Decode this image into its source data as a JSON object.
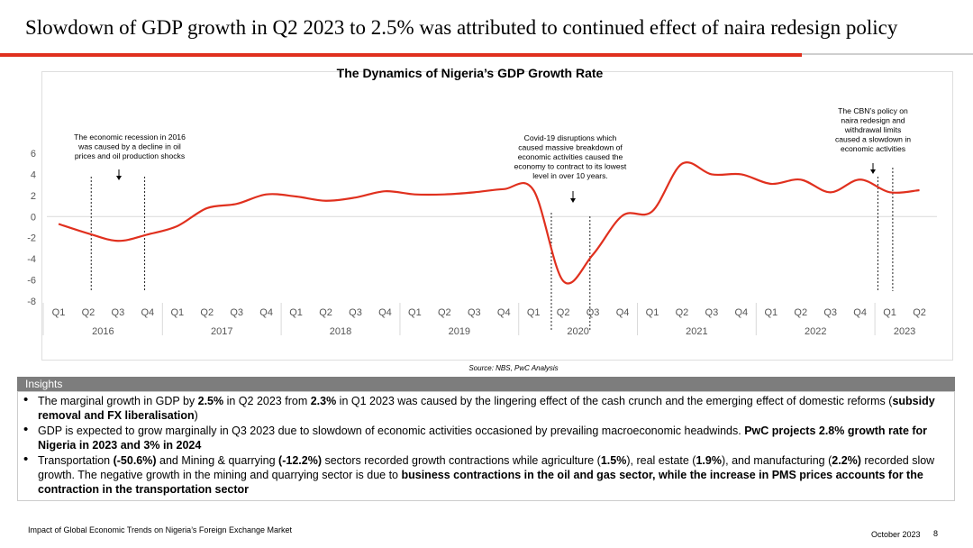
{
  "slide": {
    "title": "Slowdown of GDP growth in Q2 2023 to 2.5% was attributed to continued effect of naira redesign policy",
    "source": "Source: NBS, PwC Analysis",
    "footer_left": "Impact of Global Economic Trends on Nigeria’s Foreign Exchange Market",
    "footer_date": "October 2023",
    "page_number": "8"
  },
  "colors": {
    "accent": "#e0301e",
    "line": "#e0301e",
    "insights_header_bg": "#7d7d7d"
  },
  "chart_data": {
    "type": "line",
    "title": "The Dynamics of Nigeria’s GDP Growth Rate",
    "xlabel": "",
    "ylabel": "",
    "ylim": [
      -8,
      6
    ],
    "yticks": [
      -8,
      -6,
      -4,
      -2,
      0,
      2,
      4,
      6
    ],
    "quarters": [
      "Q1",
      "Q2",
      "Q3",
      "Q4",
      "Q1",
      "Q2",
      "Q3",
      "Q4",
      "Q1",
      "Q2",
      "Q3",
      "Q4",
      "Q1",
      "Q2",
      "Q3",
      "Q4",
      "Q1",
      "Q2",
      "Q3",
      "Q4",
      "Q1",
      "Q2",
      "Q3",
      "Q4",
      "Q1",
      "Q2",
      "Q3",
      "Q4",
      "Q1",
      "Q2"
    ],
    "years": [
      "2016",
      "2017",
      "2018",
      "2019",
      "2020",
      "2021",
      "2022",
      "2023"
    ],
    "series": [
      {
        "name": "GDP Growth Rate (%)",
        "values": [
          -0.7,
          -1.6,
          -2.3,
          -1.7,
          -0.9,
          0.8,
          1.2,
          2.1,
          1.9,
          1.5,
          1.8,
          2.4,
          2.1,
          2.1,
          2.3,
          2.6,
          2.5,
          -6.1,
          -3.6,
          0.1,
          0.5,
          5.0,
          4.0,
          4.0,
          3.1,
          3.5,
          2.3,
          3.5,
          2.3,
          2.5
        ]
      }
    ],
    "annotations": [
      {
        "text": "The economic recession in 2016 was caused by a decline in oil prices and oil production shocks",
        "lines": [
          "The economic recession in 2016",
          "was caused by a decline in oil",
          "prices and oil production shocks"
        ]
      },
      {
        "text": "Covid-19 disruptions which caused massive breakdown of economic activities caused the economy to contract to its lowest level in over 10 years.",
        "lines": [
          "Covid-19 disruptions which",
          "caused massive breakdown of",
          "economic activities caused the",
          "economy to contract to its lowest",
          "level in over 10 years."
        ]
      },
      {
        "text": "The CBN’s policy on naira redesign and withdrawal limits caused a slowdown in economic activities",
        "lines": [
          "The CBN’s policy on",
          "naira redesign and",
          "withdrawal limits",
          "caused a slowdown in",
          "economic activities"
        ]
      }
    ]
  },
  "insights": {
    "header": "Insights",
    "bullets": [
      [
        {
          "t": "The marginal growth in GDP by ",
          "b": false
        },
        {
          "t": "2.5%",
          "b": true
        },
        {
          "t": " in Q2 2023 from ",
          "b": false
        },
        {
          "t": "2.3%",
          "b": true
        },
        {
          "t": " in Q1 2023 was caused by the lingering effect of the cash crunch and the emerging effect of domestic reforms (",
          "b": false
        },
        {
          "t": "subsidy removal and FX liberalisation",
          "b": true
        },
        {
          "t": ")",
          "b": false
        }
      ],
      [
        {
          "t": "GDP is expected to grow marginally in Q3 2023 due to slowdown of economic activities occasioned by prevailing macroeconomic headwinds. ",
          "b": false
        },
        {
          "t": "PwC projects 2.8% growth rate for Nigeria in 2023 and  3% in 2024",
          "b": true
        }
      ],
      [
        {
          "t": "Transportation ",
          "b": false
        },
        {
          "t": "(-50.6%)",
          "b": true
        },
        {
          "t": "  and Mining & quarrying ",
          "b": false
        },
        {
          "t": "(-12.2%)",
          "b": true
        },
        {
          "t": " sectors recorded growth contractions while agriculture (",
          "b": false
        },
        {
          "t": "1.5%",
          "b": true
        },
        {
          "t": "), real estate (",
          "b": false
        },
        {
          "t": "1.9%",
          "b": true
        },
        {
          "t": "), and manufacturing (",
          "b": false
        },
        {
          "t": "2.2%)",
          "b": true
        },
        {
          "t": " recorded slow growth. The negative growth in the mining and quarrying sector is due to ",
          "b": false
        },
        {
          "t": "business contractions in the oil and gas sector,  while the increase in PMS prices accounts for the contraction in the transportation sector",
          "b": true
        }
      ]
    ]
  }
}
